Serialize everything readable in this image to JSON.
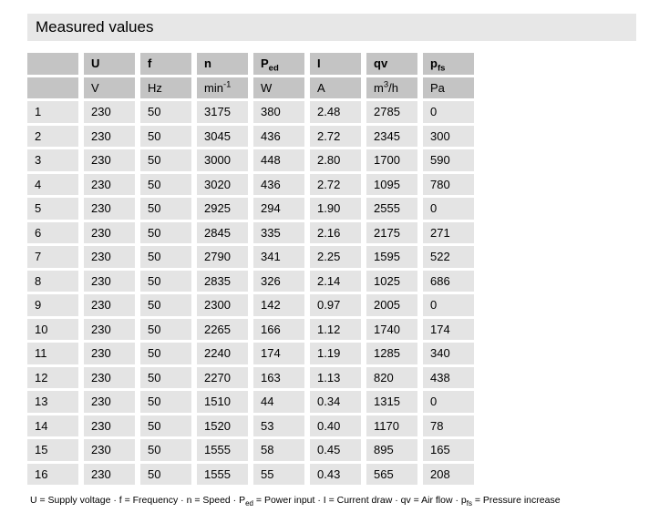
{
  "title": "Measured values",
  "colors": {
    "title_bar_bg": "#e7e7e7",
    "header_cell_bg": "#c4c4c4",
    "data_cell_bg": "#e4e4e4",
    "page_bg": "#ffffff",
    "text": "#000000"
  },
  "table": {
    "header_cells": [
      {
        "pre": ""
      },
      {
        "pre": "U"
      },
      {
        "pre": "f"
      },
      {
        "pre": "n"
      },
      {
        "pre": "P",
        "sub": "ed"
      },
      {
        "pre": "I"
      },
      {
        "pre": "qv"
      },
      {
        "pre": "p",
        "sub": "fs"
      }
    ],
    "unit_cells": [
      {
        "pre": ""
      },
      {
        "pre": "V"
      },
      {
        "pre": "Hz"
      },
      {
        "pre": "min",
        "sup": "-1"
      },
      {
        "pre": "W"
      },
      {
        "pre": "A"
      },
      {
        "pre": "m",
        "sup": "3",
        "post": "/h"
      },
      {
        "pre": "Pa"
      }
    ],
    "rows": [
      [
        "1",
        "230",
        "50",
        "3175",
        "380",
        "2.48",
        "2785",
        "0"
      ],
      [
        "2",
        "230",
        "50",
        "3045",
        "436",
        "2.72",
        "2345",
        "300"
      ],
      [
        "3",
        "230",
        "50",
        "3000",
        "448",
        "2.80",
        "1700",
        "590"
      ],
      [
        "4",
        "230",
        "50",
        "3020",
        "436",
        "2.72",
        "1095",
        "780"
      ],
      [
        "5",
        "230",
        "50",
        "2925",
        "294",
        "1.90",
        "2555",
        "0"
      ],
      [
        "6",
        "230",
        "50",
        "2845",
        "335",
        "2.16",
        "2175",
        "271"
      ],
      [
        "7",
        "230",
        "50",
        "2790",
        "341",
        "2.25",
        "1595",
        "522"
      ],
      [
        "8",
        "230",
        "50",
        "2835",
        "326",
        "2.14",
        "1025",
        "686"
      ],
      [
        "9",
        "230",
        "50",
        "2300",
        "142",
        "0.97",
        "2005",
        "0"
      ],
      [
        "10",
        "230",
        "50",
        "2265",
        "166",
        "1.12",
        "1740",
        "174"
      ],
      [
        "11",
        "230",
        "50",
        "2240",
        "174",
        "1.19",
        "1285",
        "340"
      ],
      [
        "12",
        "230",
        "50",
        "2270",
        "163",
        "1.13",
        "820",
        "438"
      ],
      [
        "13",
        "230",
        "50",
        "1510",
        "44",
        "0.34",
        "1315",
        "0"
      ],
      [
        "14",
        "230",
        "50",
        "1520",
        "53",
        "0.40",
        "1170",
        "78"
      ],
      [
        "15",
        "230",
        "50",
        "1555",
        "58",
        "0.45",
        "895",
        "165"
      ],
      [
        "16",
        "230",
        "50",
        "1555",
        "55",
        "0.43",
        "565",
        "208"
      ]
    ]
  },
  "legend": {
    "segments": [
      {
        "t": "U = Supply voltage · f = Frequency · n = Speed · P"
      },
      {
        "sub": "ed"
      },
      {
        "t": " = Power input · I = Current draw · qv = Air flow · p"
      },
      {
        "sub": "fs"
      },
      {
        "t": " = Pressure increase"
      }
    ]
  }
}
